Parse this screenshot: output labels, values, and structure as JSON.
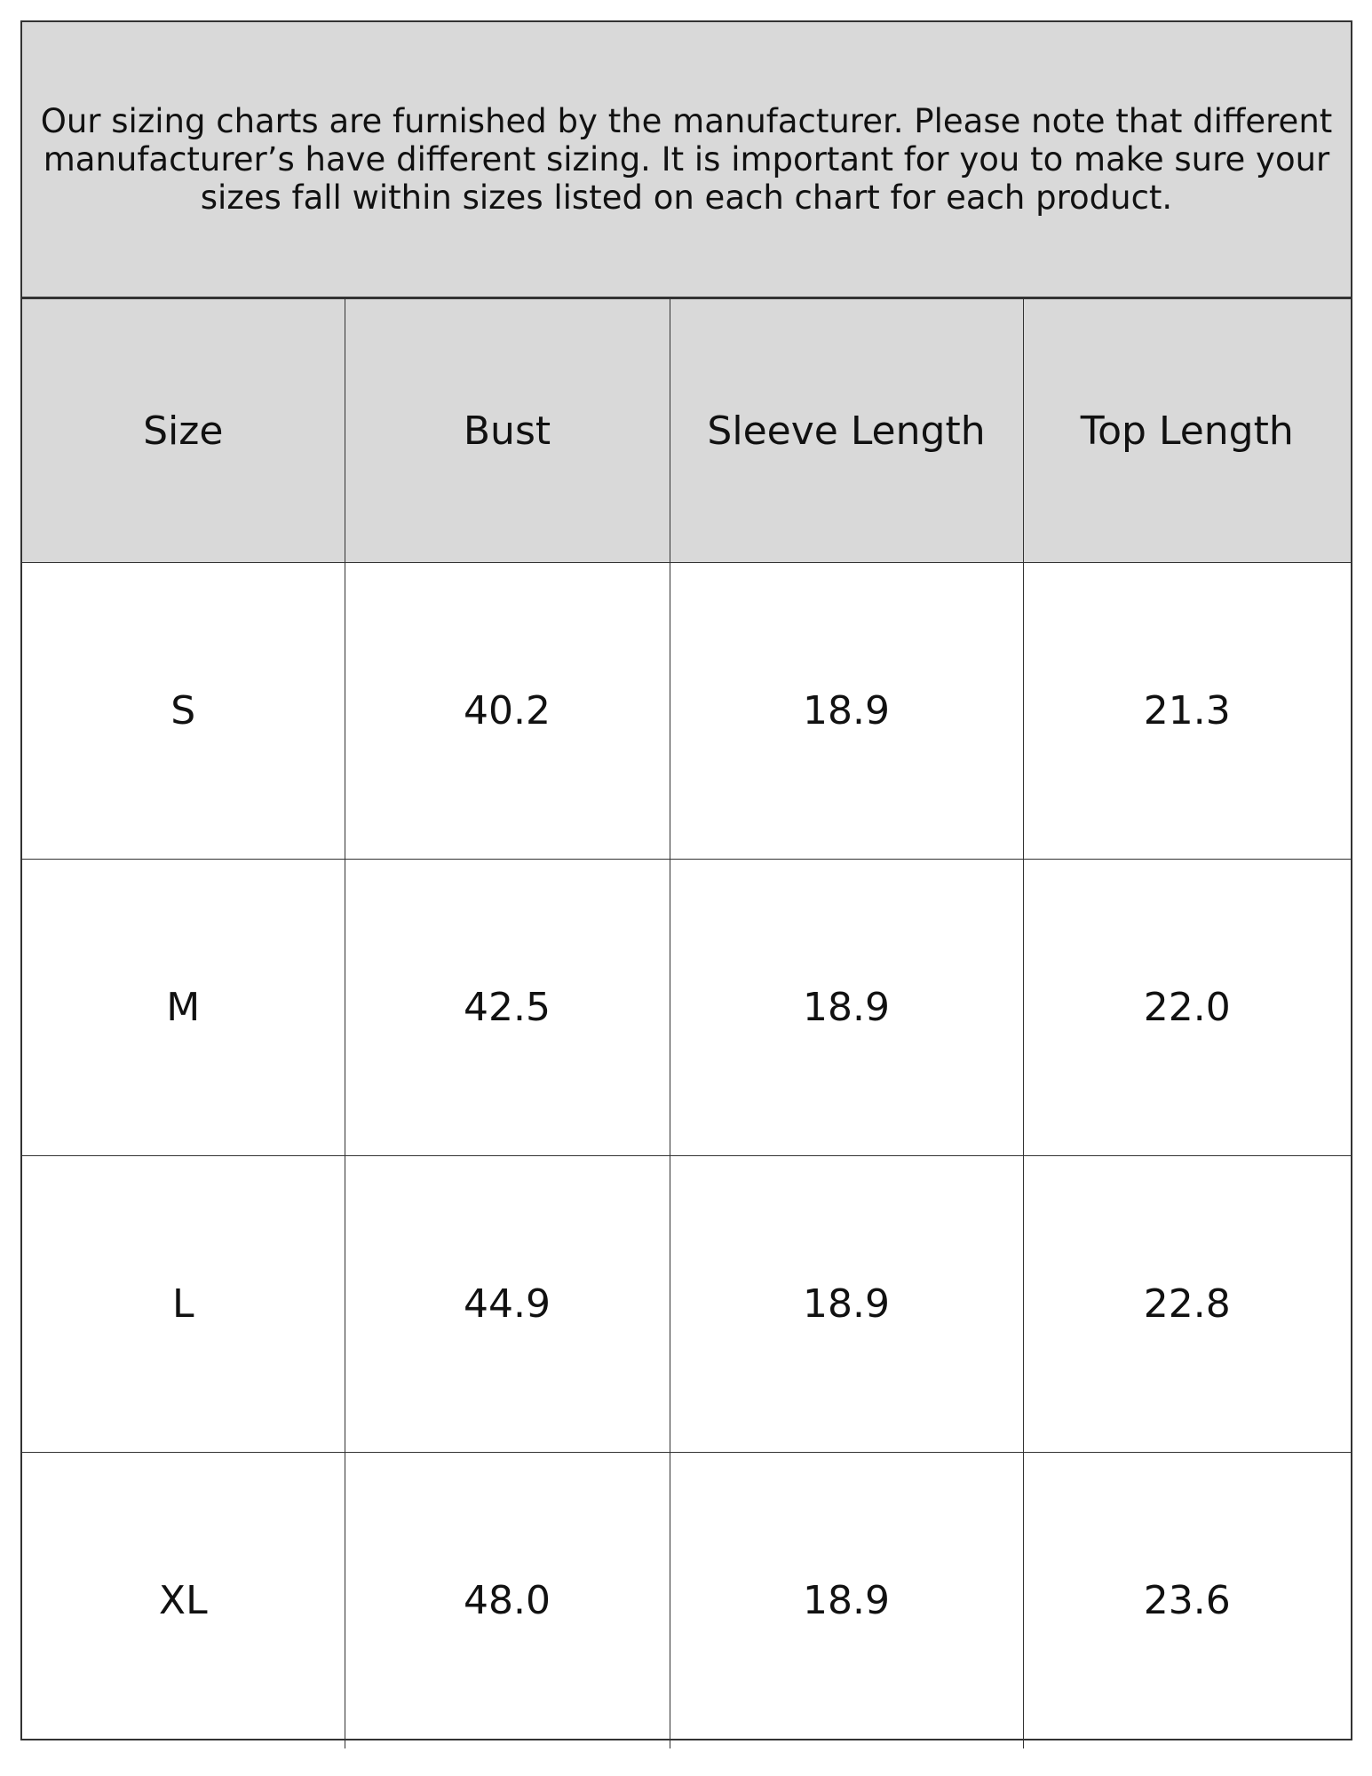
{
  "note": "Our sizing charts are furnished by the manufacturer. Please note that different manufacturer’s have different sizing. It is important for you to make sure your sizes fall within sizes listed on each chart for each product.",
  "table": {
    "headers": [
      "Size",
      "Bust",
      "Sleeve Length",
      "Top Length"
    ],
    "rows": [
      [
        "S",
        "40.2",
        "18.9",
        "21.3"
      ],
      [
        "M",
        "42.5",
        "18.9",
        "22.0"
      ],
      [
        "L",
        "44.9",
        "18.9",
        "22.8"
      ],
      [
        "XL",
        "48.0",
        "18.9",
        "23.6"
      ]
    ]
  }
}
